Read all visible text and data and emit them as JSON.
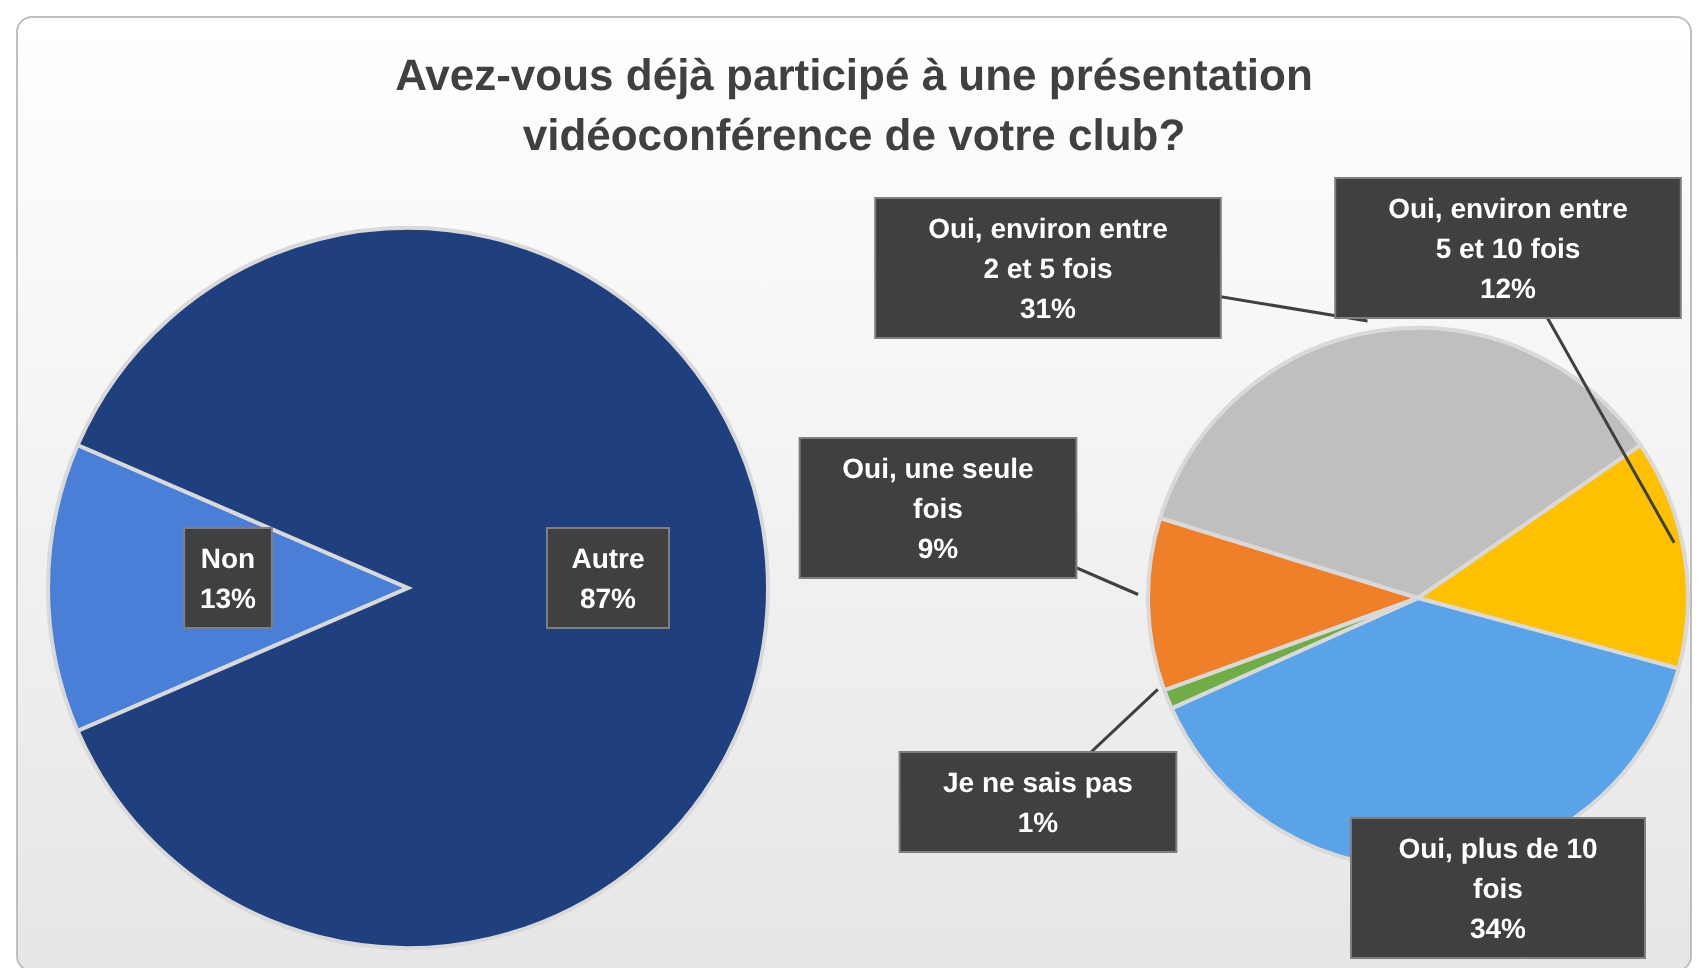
{
  "chart_data": [
    {
      "type": "pie",
      "title": "Avez-vous déjà participé à une présentation vidéoconférence de votre club?",
      "categories": [
        "Non",
        "Autre"
      ],
      "values": [
        13,
        87
      ],
      "colors": [
        "#4a7fd8",
        "#1f3f7f"
      ],
      "value_labels": [
        "13%",
        "87%"
      ]
    },
    {
      "type": "pie",
      "categories": [
        "Oui, une seule fois",
        "Oui, environ entre 2 et 5 fois",
        "Oui, environ entre 5 et 10 fois",
        "Oui, plus de 10 fois",
        "Je ne sais pas"
      ],
      "values": [
        9,
        31,
        12,
        34,
        1
      ],
      "colors": [
        "#f07f2a",
        "#bfbfbf",
        "#ffc000",
        "#5ba3e8",
        "#70ad47"
      ],
      "value_labels": [
        "9%",
        "31%",
        "12%",
        "34%",
        "1%"
      ]
    }
  ]
}
